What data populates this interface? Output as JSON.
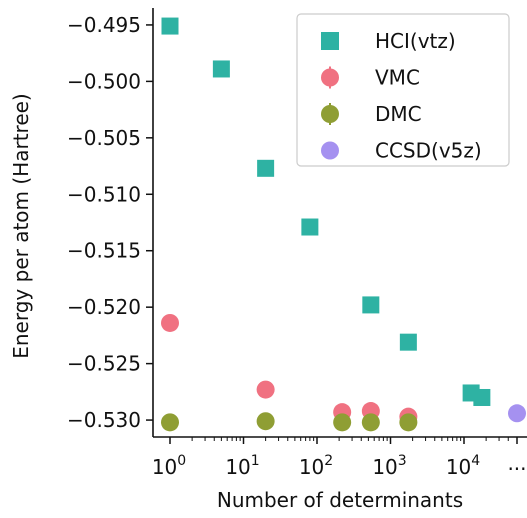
{
  "chart_data": {
    "type": "scatter",
    "title": "",
    "xlabel": "Number of determinants",
    "ylabel": "Energy per atom (Hartree)",
    "x_scale": "log",
    "x_ticks": [
      {
        "value": 1,
        "label": "10^0"
      },
      {
        "value": 10,
        "label": "10^1"
      },
      {
        "value": 100,
        "label": "10^2"
      },
      {
        "value": 1000,
        "label": "10^3"
      },
      {
        "value": 10000,
        "label": "10^4"
      }
    ],
    "x_extra_tick": {
      "label": "..."
    },
    "ylim": [
      -0.5315,
      -0.4935
    ],
    "y_ticks": [
      {
        "value": -0.495,
        "label": "−0.495"
      },
      {
        "value": -0.5,
        "label": "−0.500"
      },
      {
        "value": -0.505,
        "label": "−0.505"
      },
      {
        "value": -0.51,
        "label": "−0.510"
      },
      {
        "value": -0.515,
        "label": "−0.515"
      },
      {
        "value": -0.52,
        "label": "−0.520"
      },
      {
        "value": -0.525,
        "label": "−0.525"
      },
      {
        "value": -0.53,
        "label": "−0.530"
      }
    ],
    "grid": false,
    "legend_position": "top-right",
    "series": [
      {
        "name": "HCI(vtz)",
        "marker": "square",
        "color": "#2eb2a3",
        "points": [
          {
            "x": 1,
            "y": -0.4951
          },
          {
            "x": 5,
            "y": -0.4989
          },
          {
            "x": 20,
            "y": -0.5077
          },
          {
            "x": 80,
            "y": -0.5129
          },
          {
            "x": 540,
            "y": -0.5198
          },
          {
            "x": 1750,
            "y": -0.5231
          },
          {
            "x": 12500,
            "y": -0.5276
          },
          {
            "x": 17500,
            "y": -0.528
          }
        ]
      },
      {
        "name": "VMC",
        "marker": "circle-errorbar",
        "color": "#f07181",
        "points": [
          {
            "x": 1,
            "y": -0.5214
          },
          {
            "x": 20,
            "y": -0.5273
          },
          {
            "x": 220,
            "y": -0.5293
          },
          {
            "x": 540,
            "y": -0.5292
          },
          {
            "x": 1750,
            "y": -0.5297
          }
        ]
      },
      {
        "name": "DMC",
        "marker": "circle-errorbar",
        "color": "#8f9e34",
        "points": [
          {
            "x": 1,
            "y": -0.5302
          },
          {
            "x": 20,
            "y": -0.5301
          },
          {
            "x": 220,
            "y": -0.5302
          },
          {
            "x": 540,
            "y": -0.5302
          },
          {
            "x": 1750,
            "y": -0.5302
          }
        ]
      },
      {
        "name": "CCSD(v5z)",
        "marker": "circle",
        "color": "#a591f0",
        "points": [
          {
            "x": "...",
            "y": -0.5294
          }
        ]
      }
    ]
  }
}
